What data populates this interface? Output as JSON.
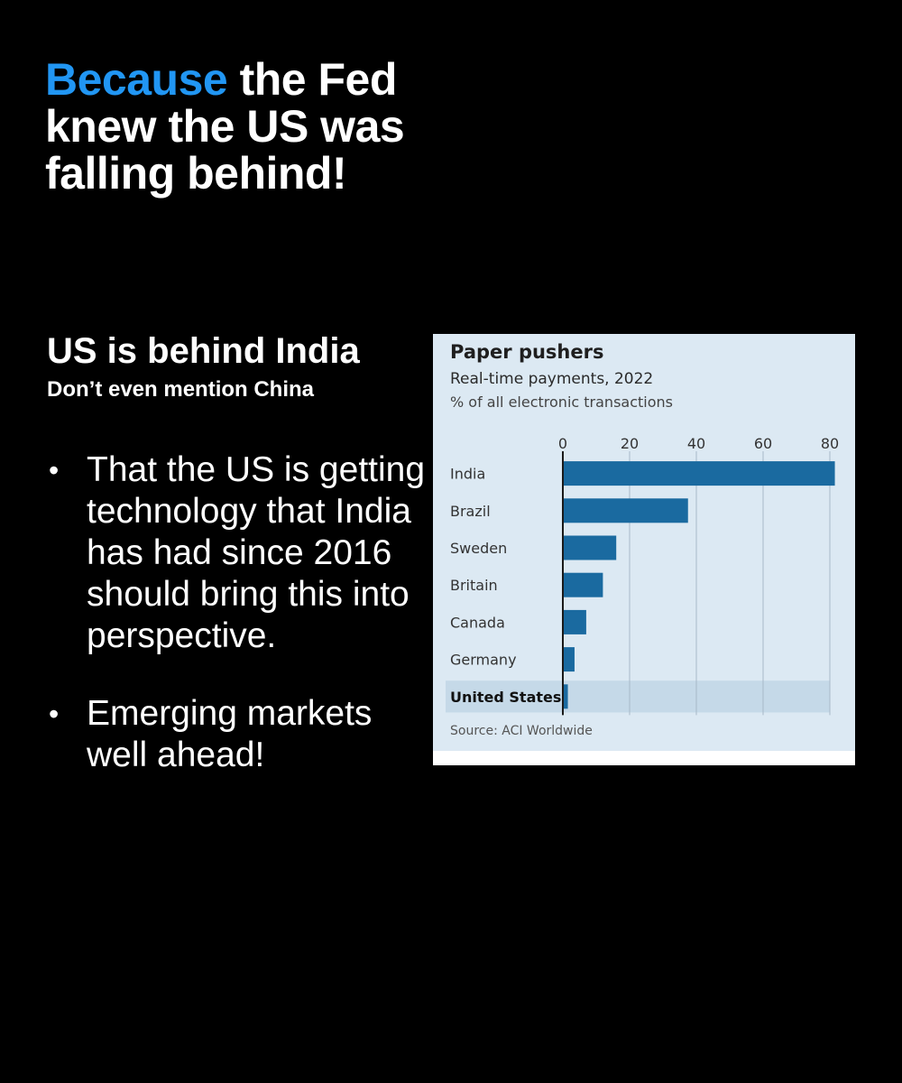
{
  "headline": {
    "accent": "Because",
    "rest": " the Fed knew the US was falling behind!"
  },
  "subhead": "US is behind India",
  "subnote": "Don’t even mention China",
  "bullets": [
    "That the US is getting technology that India has had since 2016 should bring this into perspective.",
    "Emerging markets well ahead!"
  ],
  "chart_data": {
    "type": "bar",
    "orientation": "horizontal",
    "title": "Paper pushers",
    "subtitle": "Real-time payments, 2022",
    "unit": "% of all electronic transactions",
    "source": "Source: ACI Worldwide",
    "categories": [
      "India",
      "Brazil",
      "Sweden",
      "Britain",
      "Canada",
      "Germany",
      "United States"
    ],
    "values": [
      81.5,
      37.5,
      16,
      12,
      7,
      3.5,
      1.5
    ],
    "highlight": "United States",
    "xlim": [
      0,
      80
    ],
    "xticks": [
      0,
      20,
      40,
      60,
      80
    ],
    "grid": true,
    "bar_color": "#1a6aa0",
    "highlight_band_color": "#c5d9e8"
  }
}
